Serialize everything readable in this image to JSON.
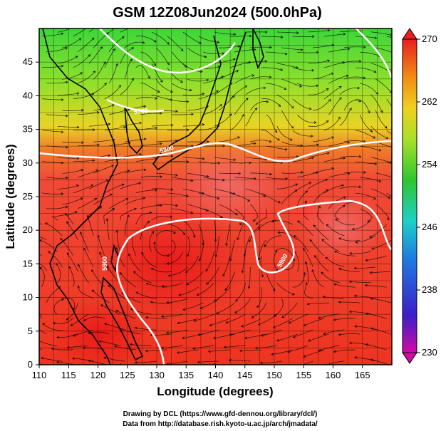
{
  "title": "GSM 12Z08Jun2024 (500.0hPa)",
  "credits": {
    "line1": "Drawing by DCL (https://www.gfd-dennou.org/library/dcl/)",
    "line2": "Data from http://database.rish.kyoto-u.ac.jp/arch/jmadata/"
  },
  "chart_data": {
    "type": "map",
    "xlabel": "Longitude (degrees)",
    "ylabel": "Latitude  (degrees)",
    "xlim": [
      110,
      170
    ],
    "ylim": [
      0,
      50
    ],
    "x_ticks": [
      "110",
      "115",
      "120",
      "125",
      "130",
      "135",
      "140",
      "145",
      "150",
      "155",
      "160",
      "165"
    ],
    "y_ticks": [
      "0",
      "5",
      "10",
      "15",
      "20",
      "25",
      "30",
      "35",
      "40",
      "45"
    ],
    "grid": true,
    "colorbar": {
      "range": [
        230,
        270
      ],
      "tick_labels": [
        "270",
        "262",
        "254",
        "246",
        "238",
        "230"
      ],
      "colors": [
        "#d10aa6",
        "#3a1fc8",
        "#1e7be0",
        "#1ed0c8",
        "#2ec62e",
        "#a8e02a",
        "#f0d020",
        "#f08c14",
        "#f04a28",
        "#e81e1e"
      ]
    },
    "contours": [
      {
        "label": "5700",
        "approx_lat": 40
      },
      {
        "label": "5800",
        "approx_lat": 34
      },
      {
        "label": "5900",
        "approx_lat": 16
      }
    ],
    "fields": [
      "temperature (shaded)",
      "streamlines (wind)",
      "geopotential height contours (white)"
    ]
  }
}
